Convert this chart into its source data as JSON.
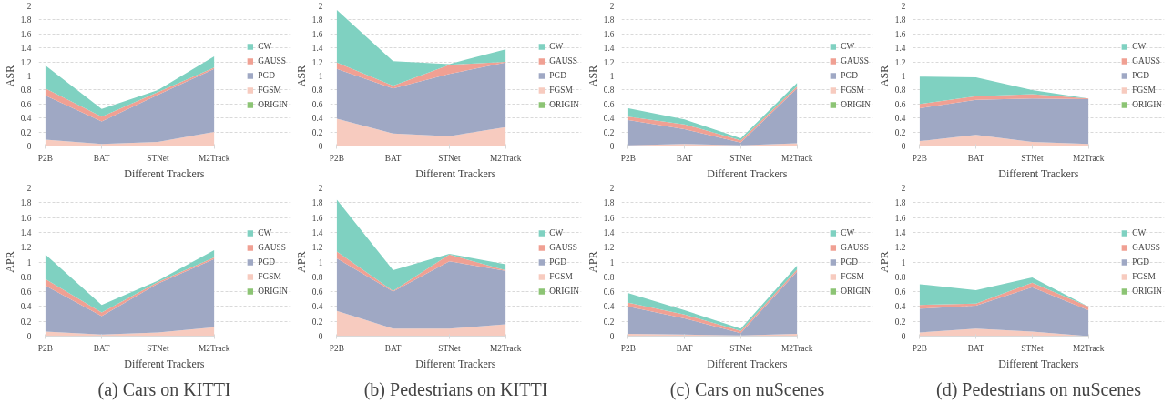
{
  "chart_data": [
    {
      "type": "area",
      "stacked": true,
      "categories": [
        "P2B",
        "BAT",
        "STNet",
        "M2Track"
      ],
      "xlabel": "Different Trackers",
      "ylabel": "ASR",
      "ylim": [
        0,
        2
      ],
      "yticks": [
        0,
        0.2,
        0.4,
        0.6,
        0.8,
        1,
        1.2,
        1.4,
        1.6,
        1.8,
        2
      ],
      "grid": "y",
      "legend": "right",
      "series": [
        {
          "name": "ORIGIN",
          "color": "#8cc474",
          "values": [
            null,
            null,
            null,
            null
          ]
        },
        {
          "name": "FGSM",
          "color": "#f7cbbf",
          "values": [
            0.09,
            0.03,
            0.06,
            0.2
          ]
        },
        {
          "name": "PGD",
          "color": "#9fa8c4",
          "values": [
            0.63,
            0.32,
            0.67,
            0.9
          ]
        },
        {
          "name": "GAUSS",
          "color": "#f0a093",
          "values": [
            0.1,
            0.07,
            0.04,
            0.02
          ]
        },
        {
          "name": "CW",
          "color": "#7fd1c1",
          "values": [
            0.33,
            0.11,
            0.03,
            0.16
          ]
        }
      ]
    },
    {
      "type": "area",
      "stacked": true,
      "categories": [
        "P2B",
        "BAT",
        "STNet",
        "M2Track"
      ],
      "xlabel": "Different Trackers",
      "ylabel": "ASR",
      "ylim": [
        0,
        2
      ],
      "yticks": [
        0,
        0.2,
        0.4,
        0.6,
        0.8,
        1,
        1.2,
        1.4,
        1.6,
        1.8,
        2
      ],
      "grid": "y",
      "legend": "right",
      "series": [
        {
          "name": "ORIGIN",
          "color": "#8cc474",
          "values": [
            null,
            null,
            null,
            null
          ]
        },
        {
          "name": "FGSM",
          "color": "#f7cbbf",
          "values": [
            0.39,
            0.18,
            0.14,
            0.27
          ]
        },
        {
          "name": "PGD",
          "color": "#9fa8c4",
          "values": [
            0.71,
            0.64,
            0.89,
            0.92
          ]
        },
        {
          "name": "GAUSS",
          "color": "#f0a093",
          "values": [
            0.09,
            0.04,
            0.13,
            0.01
          ]
        },
        {
          "name": "CW",
          "color": "#7fd1c1",
          "values": [
            0.75,
            0.35,
            0.01,
            0.18
          ]
        }
      ]
    },
    {
      "type": "area",
      "stacked": true,
      "categories": [
        "P2B",
        "BAT",
        "STNet",
        "M2Track"
      ],
      "xlabel": "Different Trackers",
      "ylabel": "ASR",
      "ylim": [
        0,
        2
      ],
      "yticks": [
        0,
        0.2,
        0.4,
        0.6,
        0.8,
        1,
        1.2,
        1.4,
        1.6,
        1.8,
        2
      ],
      "grid": "y",
      "legend": "right",
      "series": [
        {
          "name": "ORIGIN",
          "color": "#8cc474",
          "values": [
            null,
            null,
            null,
            null
          ]
        },
        {
          "name": "FGSM",
          "color": "#f7cbbf",
          "values": [
            0.01,
            0.03,
            0.01,
            0.04
          ]
        },
        {
          "name": "PGD",
          "color": "#9fa8c4",
          "values": [
            0.36,
            0.21,
            0.04,
            0.78
          ]
        },
        {
          "name": "GAUSS",
          "color": "#f0a093",
          "values": [
            0.05,
            0.07,
            0.03,
            0.03
          ]
        },
        {
          "name": "CW",
          "color": "#7fd1c1",
          "values": [
            0.12,
            0.07,
            0.03,
            0.05
          ]
        }
      ]
    },
    {
      "type": "area",
      "stacked": true,
      "categories": [
        "P2B",
        "BAT",
        "STNet",
        "M2Track"
      ],
      "xlabel": "Different Trackers",
      "ylabel": "ASR",
      "ylim": [
        0,
        2
      ],
      "yticks": [
        0,
        0.2,
        0.4,
        0.6,
        0.8,
        1,
        1.2,
        1.4,
        1.6,
        1.8,
        2
      ],
      "grid": "y",
      "legend": "right",
      "series": [
        {
          "name": "ORIGIN",
          "color": "#8cc474",
          "values": [
            null,
            null,
            null,
            null
          ]
        },
        {
          "name": "FGSM",
          "color": "#f7cbbf",
          "values": [
            0.07,
            0.16,
            0.06,
            0.03
          ]
        },
        {
          "name": "PGD",
          "color": "#9fa8c4",
          "values": [
            0.47,
            0.5,
            0.62,
            0.64
          ]
        },
        {
          "name": "GAUSS",
          "color": "#f0a093",
          "values": [
            0.06,
            0.05,
            0.06,
            0.01
          ]
        },
        {
          "name": "CW",
          "color": "#7fd1c1",
          "values": [
            0.39,
            0.27,
            0.06,
            0
          ]
        }
      ]
    },
    {
      "type": "area",
      "stacked": true,
      "categories": [
        "P2B",
        "BAT",
        "STNet",
        "M2Track"
      ],
      "xlabel": "Different Trackers",
      "ylabel": "APR",
      "ylim": [
        0,
        2
      ],
      "yticks": [
        0,
        0.2,
        0.4,
        0.6,
        0.8,
        1,
        1.2,
        1.4,
        1.6,
        1.8,
        2
      ],
      "grid": "y",
      "legend": "right",
      "annotations": [
        "(a) Cars on KITTI"
      ],
      "series": [
        {
          "name": "ORIGIN",
          "color": "#8cc474",
          "values": [
            null,
            null,
            null,
            null
          ]
        },
        {
          "name": "FGSM",
          "color": "#f7cbbf",
          "values": [
            0.06,
            0.02,
            0.05,
            0.12
          ]
        },
        {
          "name": "PGD",
          "color": "#9fa8c4",
          "values": [
            0.62,
            0.25,
            0.66,
            0.92
          ]
        },
        {
          "name": "GAUSS",
          "color": "#f0a093",
          "values": [
            0.09,
            0.05,
            0.02,
            0.02
          ]
        },
        {
          "name": "CW",
          "color": "#7fd1c1",
          "values": [
            0.33,
            0.1,
            0.02,
            0.1
          ]
        }
      ]
    },
    {
      "type": "area",
      "stacked": true,
      "categories": [
        "P2B",
        "BAT",
        "STNet",
        "M2Track"
      ],
      "xlabel": "Different Trackers",
      "ylabel": "APR",
      "ylim": [
        0,
        2
      ],
      "yticks": [
        0,
        0.2,
        0.4,
        0.6,
        0.8,
        1,
        1.2,
        1.4,
        1.6,
        1.8,
        2
      ],
      "grid": "y",
      "legend": "right",
      "annotations": [
        "(b) Pedestrians on KITTI"
      ],
      "series": [
        {
          "name": "ORIGIN",
          "color": "#8cc474",
          "values": [
            null,
            null,
            null,
            null
          ]
        },
        {
          "name": "FGSM",
          "color": "#f7cbbf",
          "values": [
            0.34,
            0.1,
            0.1,
            0.16
          ]
        },
        {
          "name": "PGD",
          "color": "#9fa8c4",
          "values": [
            0.71,
            0.5,
            0.91,
            0.72
          ]
        },
        {
          "name": "GAUSS",
          "color": "#f0a093",
          "values": [
            0.09,
            0.01,
            0.09,
            0.01
          ]
        },
        {
          "name": "CW",
          "color": "#7fd1c1",
          "values": [
            0.7,
            0.28,
            0.01,
            0.08
          ]
        }
      ]
    },
    {
      "type": "area",
      "stacked": true,
      "categories": [
        "P2B",
        "BAT",
        "STNet",
        "M2Track"
      ],
      "xlabel": "Different Trackers",
      "ylabel": "APR",
      "ylim": [
        0,
        2
      ],
      "yticks": [
        0,
        0.2,
        0.4,
        0.6,
        0.8,
        1,
        1.2,
        1.4,
        1.6,
        1.8,
        2
      ],
      "grid": "y",
      "legend": "right",
      "annotations": [
        "(c) Cars on nuScenes"
      ],
      "series": [
        {
          "name": "ORIGIN",
          "color": "#8cc474",
          "values": [
            null,
            null,
            null,
            null
          ]
        },
        {
          "name": "FGSM",
          "color": "#f7cbbf",
          "values": [
            0.03,
            0.02,
            0.01,
            0.03
          ]
        },
        {
          "name": "PGD",
          "color": "#9fa8c4",
          "values": [
            0.37,
            0.22,
            0.03,
            0.84
          ]
        },
        {
          "name": "GAUSS",
          "color": "#f0a093",
          "values": [
            0.05,
            0.05,
            0.03,
            0.03
          ]
        },
        {
          "name": "CW",
          "color": "#7fd1c1",
          "values": [
            0.13,
            0.06,
            0.03,
            0.05
          ]
        }
      ]
    },
    {
      "type": "area",
      "stacked": true,
      "categories": [
        "P2B",
        "BAT",
        "STNet",
        "M2Track"
      ],
      "xlabel": "Different Trackers",
      "ylabel": "APR",
      "ylim": [
        0,
        2
      ],
      "yticks": [
        0,
        0.2,
        0.4,
        0.6,
        0.8,
        1,
        1.2,
        1.4,
        1.6,
        1.8,
        2
      ],
      "grid": "y",
      "legend": "right",
      "annotations": [
        "(d) Pedestrians on nuScenes"
      ],
      "series": [
        {
          "name": "ORIGIN",
          "color": "#8cc474",
          "values": [
            null,
            null,
            null,
            null
          ]
        },
        {
          "name": "FGSM",
          "color": "#f7cbbf",
          "values": [
            0.05,
            0.1,
            0.06,
            0
          ]
        },
        {
          "name": "PGD",
          "color": "#9fa8c4",
          "values": [
            0.32,
            0.31,
            0.6,
            0.35
          ]
        },
        {
          "name": "GAUSS",
          "color": "#f0a093",
          "values": [
            0.05,
            0.03,
            0.06,
            0.05
          ]
        },
        {
          "name": "CW",
          "color": "#7fd1c1",
          "values": [
            0.28,
            0.18,
            0.07,
            0
          ]
        }
      ]
    }
  ]
}
